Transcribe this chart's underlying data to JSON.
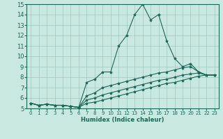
{
  "title": "",
  "xlabel": "Humidex (Indice chaleur)",
  "ylabel": "",
  "xlim": [
    -0.5,
    23.5
  ],
  "ylim": [
    5,
    15
  ],
  "xticks": [
    0,
    1,
    2,
    3,
    4,
    5,
    6,
    7,
    8,
    9,
    10,
    11,
    12,
    13,
    14,
    15,
    16,
    17,
    18,
    19,
    20,
    21,
    22,
    23
  ],
  "yticks": [
    5,
    6,
    7,
    8,
    9,
    10,
    11,
    12,
    13,
    14,
    15
  ],
  "bg_color": "#c8e8e0",
  "grid_color": "#a0c8c0",
  "line_color": "#1a6858",
  "series": [
    {
      "x": [
        0,
        1,
        2,
        3,
        4,
        5,
        6,
        7,
        8,
        9,
        10,
        11,
        12,
        13,
        14,
        15,
        16,
        17,
        18,
        19,
        20,
        21,
        22,
        23
      ],
      "y": [
        5.5,
        5.3,
        5.4,
        5.3,
        5.3,
        5.2,
        5.1,
        7.5,
        7.8,
        8.5,
        8.5,
        11.0,
        12.0,
        14.0,
        15.0,
        13.5,
        14.0,
        11.5,
        9.8,
        9.0,
        9.3,
        8.5,
        8.2,
        8.2
      ]
    },
    {
      "x": [
        0,
        1,
        2,
        3,
        4,
        5,
        6,
        7,
        8,
        9,
        10,
        11,
        12,
        13,
        14,
        15,
        16,
        17,
        18,
        19,
        20,
        21,
        22,
        23
      ],
      "y": [
        5.5,
        5.3,
        5.4,
        5.3,
        5.3,
        5.2,
        5.1,
        6.2,
        6.5,
        7.0,
        7.2,
        7.4,
        7.6,
        7.8,
        8.0,
        8.2,
        8.4,
        8.5,
        8.7,
        8.9,
        9.0,
        8.5,
        8.2,
        8.2
      ]
    },
    {
      "x": [
        0,
        1,
        2,
        3,
        4,
        5,
        6,
        7,
        8,
        9,
        10,
        11,
        12,
        13,
        14,
        15,
        16,
        17,
        18,
        19,
        20,
        21,
        22,
        23
      ],
      "y": [
        5.5,
        5.3,
        5.4,
        5.3,
        5.3,
        5.2,
        5.1,
        5.8,
        6.0,
        6.3,
        6.5,
        6.7,
        6.9,
        7.1,
        7.3,
        7.5,
        7.7,
        7.8,
        8.0,
        8.2,
        8.3,
        8.4,
        8.2,
        8.2
      ]
    },
    {
      "x": [
        0,
        1,
        2,
        3,
        4,
        5,
        6,
        7,
        8,
        9,
        10,
        11,
        12,
        13,
        14,
        15,
        16,
        17,
        18,
        19,
        20,
        21,
        22,
        23
      ],
      "y": [
        5.5,
        5.3,
        5.4,
        5.3,
        5.3,
        5.2,
        5.1,
        5.5,
        5.6,
        5.8,
        6.0,
        6.2,
        6.4,
        6.6,
        6.8,
        7.0,
        7.2,
        7.4,
        7.5,
        7.7,
        7.9,
        8.1,
        8.2,
        8.2
      ]
    }
  ]
}
